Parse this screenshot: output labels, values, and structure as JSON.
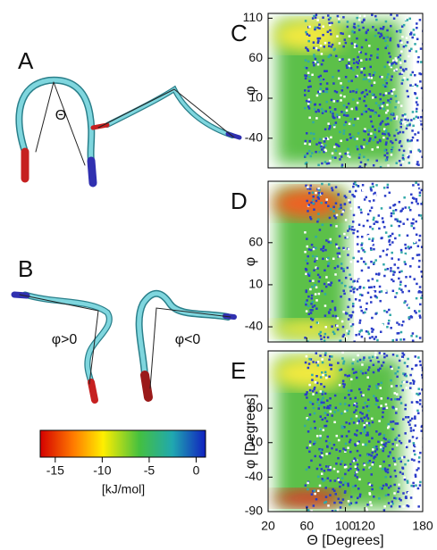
{
  "panels": {
    "A": {
      "label": "A",
      "angle": "Θ"
    },
    "B": {
      "label": "B",
      "positive": "φ>0",
      "negative": "φ<0"
    }
  },
  "colorbar": {
    "ticks": [
      -15,
      -10,
      -5,
      0
    ],
    "unit": "[kJ/mol]",
    "lim": [
      -16.6,
      1
    ]
  },
  "plots": [
    {
      "label": "C",
      "ylabel": "φ",
      "ylim": [
        -77,
        116
      ],
      "yticks": [
        110,
        60,
        10,
        -40
      ]
    },
    {
      "label": "D",
      "ylabel": "φ",
      "ylim": [
        -58,
        133
      ],
      "yticks": [
        60,
        10,
        -40
      ]
    },
    {
      "label": "E",
      "ylabel": "φ [Degrees]",
      "ylim": [
        -90,
        143
      ],
      "yticks": [
        60,
        10,
        -40,
        -90
      ]
    }
  ],
  "xaxis": {
    "label": "Θ [Degrees]",
    "lim": [
      20,
      180
    ],
    "ticks": [
      20,
      60,
      100,
      120,
      180
    ]
  }
}
